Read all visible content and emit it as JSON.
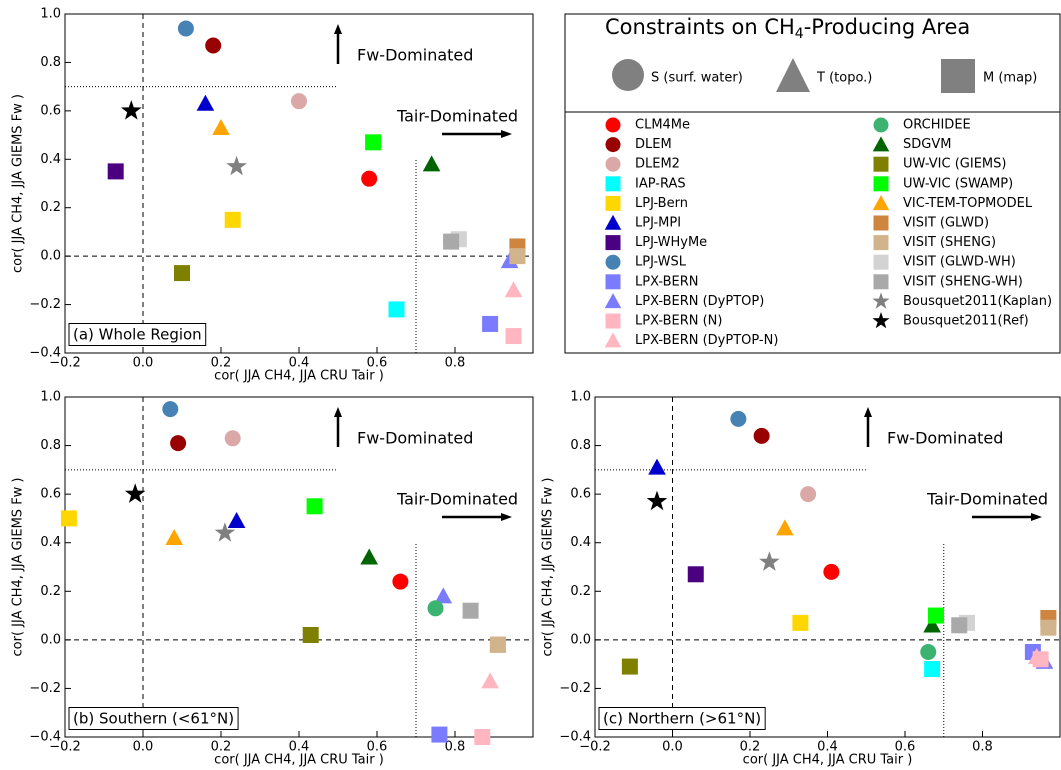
{
  "legend": {
    "title_parts": [
      "Constraints on CH",
      "4",
      "-Producing Area"
    ],
    "shape_labels": [
      "S (surf. water)",
      "T (topo.)",
      "M (map)"
    ],
    "series": [
      {
        "name": "CLM4Me",
        "color": "#ff0000",
        "marker": "circle"
      },
      {
        "name": "DLEM",
        "color": "#990000",
        "marker": "circle"
      },
      {
        "name": "DLEM2",
        "color": "#dba8a8",
        "marker": "circle"
      },
      {
        "name": "IAP-RAS",
        "color": "#00ffff",
        "marker": "square"
      },
      {
        "name": "LPJ-Bern",
        "color": "#ffd700",
        "marker": "square"
      },
      {
        "name": "LPJ-MPI",
        "color": "#0000cc",
        "marker": "triangle"
      },
      {
        "name": "LPJ-WHyMe",
        "color": "#4b0082",
        "marker": "square"
      },
      {
        "name": "LPJ-WSL",
        "color": "#4682b4",
        "marker": "circle"
      },
      {
        "name": "LPX-BERN",
        "color": "#7b7bff",
        "marker": "square"
      },
      {
        "name": "LPX-BERN (DyPTOP)",
        "color": "#7b7bff",
        "marker": "triangle"
      },
      {
        "name": "LPX-BERN (N)",
        "color": "#ffb6c1",
        "marker": "square"
      },
      {
        "name": "LPX-BERN (DyPTOP-N)",
        "color": "#ffb6c1",
        "marker": "triangle"
      },
      {
        "name": "ORCHIDEE",
        "color": "#3cb371",
        "marker": "circle"
      },
      {
        "name": "SDGVM",
        "color": "#006400",
        "marker": "triangle"
      },
      {
        "name": "UW-VIC (GIEMS)",
        "color": "#808000",
        "marker": "square"
      },
      {
        "name": "UW-VIC (SWAMP)",
        "color": "#00ff00",
        "marker": "square"
      },
      {
        "name": "VIC-TEM-TOPMODEL",
        "color": "#ffa500",
        "marker": "triangle"
      },
      {
        "name": "VISIT (GLWD)",
        "color": "#cd853f",
        "marker": "square"
      },
      {
        "name": "VISIT (SHENG)",
        "color": "#d2b48c",
        "marker": "square"
      },
      {
        "name": "VISIT (GLWD-WH)",
        "color": "#d3d3d3",
        "marker": "square"
      },
      {
        "name": "VISIT (SHENG-WH)",
        "color": "#a9a9a9",
        "marker": "square"
      },
      {
        "name": "Bousquet2011(Kaplan)",
        "color": "#808080",
        "marker": "star"
      },
      {
        "name": "Bousquet2011(Ref)",
        "color": "#000000",
        "marker": "star"
      }
    ]
  },
  "chart_data": [
    {
      "type": "scatter",
      "label": "(a) Whole Region",
      "xlabel": "cor( JJA CH4, JJA CRU Tair )",
      "ylabel": "cor( JJA CH4, JJA GIEMS Fw )",
      "annotations": [
        "Fw-Dominated",
        "Tair-Dominated"
      ],
      "reference_lines": [
        {
          "x": [
            -0.2,
            0.5
          ],
          "y": [
            0.7,
            0.7
          ]
        },
        {
          "x": [
            0.7,
            0.7
          ],
          "y": [
            -0.4,
            0.4
          ]
        }
      ],
      "xlim": [
        -0.2,
        1.0
      ],
      "ylim": [
        -0.4,
        1.0
      ],
      "xticks": [
        {
          "value": -0.2,
          "label": "−0.2"
        },
        {
          "value": 0,
          "label": "0.0"
        },
        0.2,
        0.4,
        0.6,
        0.8
      ],
      "yticks": [
        {
          "value": -0.4,
          "label": "−0.4"
        },
        {
          "value": -0.2,
          "label": "−0.2"
        },
        {
          "value": 0,
          "label": "0.0"
        },
        0.2,
        0.4,
        0.6,
        0.8,
        {
          "value": 1.0,
          "label": "1.0"
        }
      ],
      "x": [
        0.58,
        0.18,
        0.4,
        0.65,
        0.23,
        0.16,
        -0.07,
        0.11,
        0.89,
        0.94,
        0.95,
        0.95,
        0.79,
        0.74,
        0.1,
        0.59,
        0.2,
        0.96,
        0.96,
        0.81,
        0.79,
        0.24,
        -0.03
      ],
      "y": [
        0.32,
        0.87,
        0.64,
        -0.22,
        0.15,
        0.63,
        0.35,
        0.94,
        -0.28,
        -0.02,
        -0.33,
        -0.14,
        0.06,
        0.38,
        -0.07,
        0.47,
        0.53,
        0.04,
        0.0,
        0.07,
        0.06,
        0.37,
        0.6
      ]
    },
    {
      "type": "scatter",
      "label": "(b) Southern (<61°N)",
      "xlabel": "cor( JJA CH4, JJA CRU Tair )",
      "ylabel": "cor( JJA CH4, JJA GIEMS Fw )",
      "annotations": [
        "Fw-Dominated",
        "Tair-Dominated"
      ],
      "reference_lines": [
        {
          "x": [
            -0.2,
            0.5
          ],
          "y": [
            0.7,
            0.7
          ]
        },
        {
          "x": [
            0.7,
            0.7
          ],
          "y": [
            -0.4,
            0.4
          ]
        }
      ],
      "xlim": [
        -0.2,
        1.0
      ],
      "ylim": [
        -0.4,
        1.0
      ],
      "xticks": [
        {
          "value": -0.2,
          "label": "−0.2"
        },
        {
          "value": 0,
          "label": "0.0"
        },
        0.2,
        0.4,
        0.6,
        0.8
      ],
      "yticks": [
        {
          "value": -0.4,
          "label": "−0.4"
        },
        {
          "value": -0.2,
          "label": "−0.2"
        },
        {
          "value": 0,
          "label": "0.0"
        },
        0.2,
        0.4,
        0.6,
        0.8,
        {
          "value": 1.0,
          "label": "1.0"
        }
      ],
      "x": [
        0.66,
        0.09,
        0.23,
        null,
        -0.19,
        0.24,
        null,
        0.07,
        0.76,
        0.77,
        0.87,
        0.89,
        0.75,
        0.58,
        0.43,
        0.44,
        0.08,
        0.91,
        0.91,
        null,
        0.84,
        0.21,
        -0.02
      ],
      "y": [
        0.24,
        0.81,
        0.83,
        null,
        0.5,
        0.49,
        null,
        0.95,
        -0.39,
        0.18,
        -0.4,
        -0.17,
        0.13,
        0.34,
        0.02,
        0.55,
        0.42,
        -0.02,
        -0.02,
        null,
        0.12,
        0.44,
        0.6
      ]
    },
    {
      "type": "scatter",
      "label": "(c) Northern (>61°N)",
      "xlabel": "cor( JJA CH4, JJA CRU Tair )",
      "ylabel": "cor( JJA CH4, JJA GIEMS Fw )",
      "annotations": [
        "Fw-Dominated",
        "Tair-Dominated"
      ],
      "reference_lines": [
        {
          "x": [
            -0.2,
            0.5
          ],
          "y": [
            0.7,
            0.7
          ]
        },
        {
          "x": [
            0.7,
            0.7
          ],
          "y": [
            -0.4,
            0.4
          ]
        }
      ],
      "xlim": [
        -0.2,
        1.0
      ],
      "ylim": [
        -0.4,
        1.0
      ],
      "xticks": [
        {
          "value": -0.2,
          "label": "−0.2"
        },
        {
          "value": 0,
          "label": "0.0"
        },
        0.2,
        0.4,
        0.6,
        0.8
      ],
      "yticks": [
        {
          "value": -0.4,
          "label": "−0.4"
        },
        {
          "value": -0.2,
          "label": "−0.2"
        },
        {
          "value": 0,
          "label": "0.0"
        },
        0.2,
        0.4,
        0.6,
        0.8,
        {
          "value": 1.0,
          "label": "1.0"
        }
      ],
      "x": [
        0.41,
        0.23,
        0.35,
        0.67,
        0.33,
        -0.04,
        0.06,
        0.17,
        0.93,
        0.96,
        0.95,
        0.94,
        0.66,
        0.67,
        -0.11,
        0.68,
        0.29,
        0.97,
        0.97,
        0.76,
        0.74,
        0.25,
        -0.04
      ],
      "y": [
        0.28,
        0.84,
        0.6,
        -0.12,
        0.07,
        0.71,
        0.27,
        0.91,
        -0.05,
        -0.09,
        -0.08,
        -0.07,
        -0.05,
        0.06,
        -0.11,
        0.1,
        0.46,
        0.09,
        0.05,
        0.07,
        0.06,
        0.32,
        0.57
      ]
    }
  ]
}
